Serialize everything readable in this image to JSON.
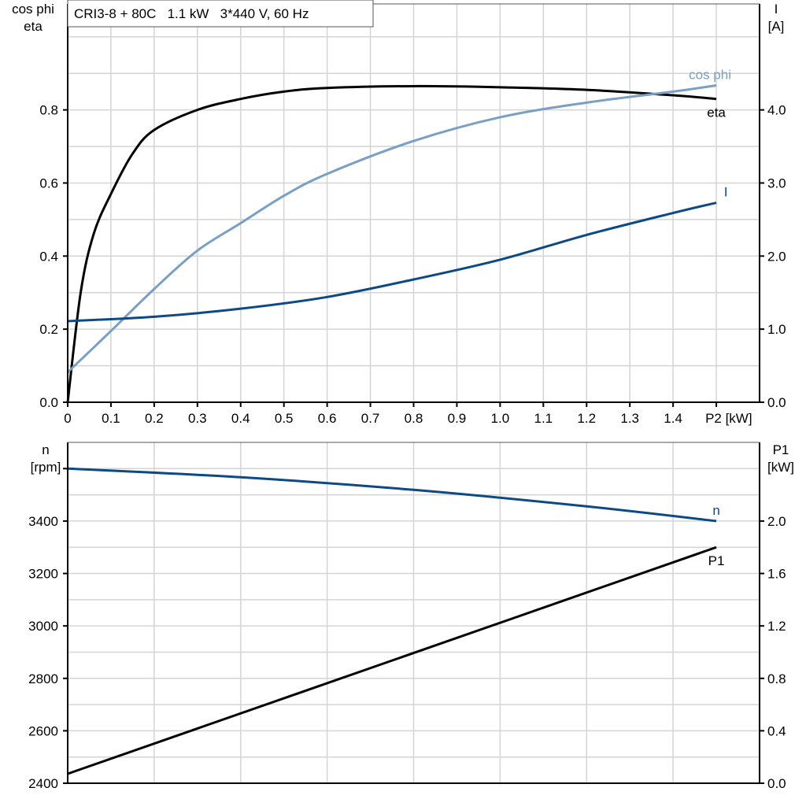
{
  "chart_data": [
    {
      "type": "line",
      "title": "CRI3-8 + 80C   1.1 kW   3*440 V, 60 Hz",
      "xlabel": "P2 [kW]",
      "ylabel_left": [
        "cos phi",
        "eta"
      ],
      "ylabel_right": [
        "I",
        "[A]"
      ],
      "xlim": [
        0,
        1.6
      ],
      "ylim_left": [
        0,
        1.09
      ],
      "ylim_right": [
        0,
        5.45
      ],
      "x_ticks": [
        "0",
        "0.1",
        "0.2",
        "0.3",
        "0.4",
        "0.5",
        "0.6",
        "0.7",
        "0.8",
        "0.9",
        "1.0",
        "1.1",
        "1.2",
        "1.3",
        "1.4"
      ],
      "y_ticks_left": [
        "0.0",
        "0.2",
        "0.4",
        "0.6",
        "0.8"
      ],
      "y_ticks_right": [
        "0.0",
        "1.0",
        "2.0",
        "3.0",
        "4.0"
      ],
      "grid": true,
      "series": [
        {
          "name": "eta",
          "axis": "left",
          "color": "#000000",
          "x": [
            0,
            0.03,
            0.06,
            0.1,
            0.15,
            0.2,
            0.3,
            0.4,
            0.5,
            0.6,
            0.8,
            1.0,
            1.2,
            1.4,
            1.5
          ],
          "y": [
            0,
            0.3,
            0.46,
            0.57,
            0.68,
            0.745,
            0.8,
            0.83,
            0.85,
            0.86,
            0.865,
            0.862,
            0.855,
            0.84,
            0.83
          ]
        },
        {
          "name": "cos phi",
          "axis": "left",
          "color": "#7a9fc4",
          "x": [
            0,
            0.1,
            0.2,
            0.3,
            0.4,
            0.5,
            0.6,
            0.8,
            1.0,
            1.2,
            1.4,
            1.5
          ],
          "y": [
            0.082,
            0.195,
            0.31,
            0.415,
            0.49,
            0.565,
            0.625,
            0.715,
            0.78,
            0.82,
            0.85,
            0.867
          ]
        },
        {
          "name": "I",
          "axis": "right",
          "color": "#0d4a85",
          "x": [
            0,
            0.2,
            0.4,
            0.6,
            0.8,
            1.0,
            1.2,
            1.4,
            1.5
          ],
          "y": [
            1.11,
            1.17,
            1.28,
            1.44,
            1.68,
            1.95,
            2.29,
            2.59,
            2.73
          ]
        }
      ]
    },
    {
      "type": "line",
      "ylabel_left": [
        "n",
        "[rpm]"
      ],
      "ylabel_right": [
        "P1",
        "[kW]"
      ],
      "xlim": [
        0,
        1.6
      ],
      "ylim_left": [
        2400,
        3700
      ],
      "ylim_right": [
        0,
        2.6
      ],
      "y_ticks_left": [
        "2400",
        "2600",
        "2800",
        "3000",
        "3200",
        "3400"
      ],
      "y_ticks_right": [
        "0.0",
        "0.4",
        "0.8",
        "1.2",
        "1.6",
        "2.0"
      ],
      "grid": true,
      "series": [
        {
          "name": "n",
          "axis": "left",
          "color": "#0d4a85",
          "x": [
            0,
            0.4,
            0.8,
            1.2,
            1.5
          ],
          "y": [
            3600,
            3567,
            3519,
            3456,
            3400
          ]
        },
        {
          "name": "P1",
          "axis": "right",
          "color": "#000000",
          "x": [
            0,
            1.5
          ],
          "y": [
            0.072,
            1.8
          ]
        }
      ]
    }
  ]
}
